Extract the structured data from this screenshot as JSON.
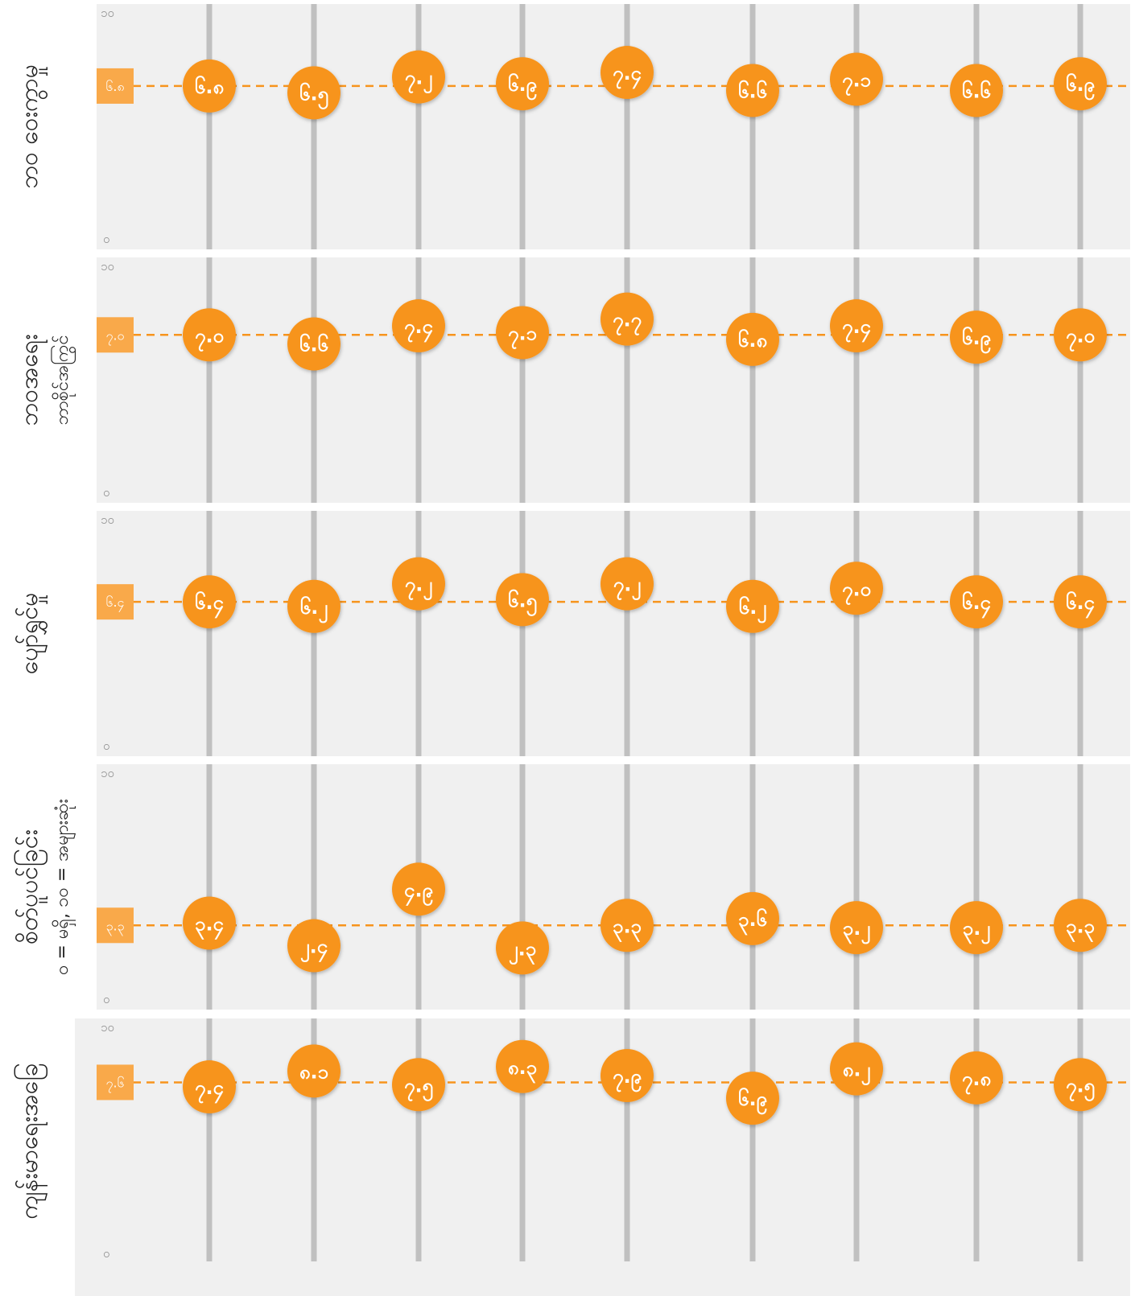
{
  "chart_data": {
    "type": "scatter",
    "ylim": [
      0,
      10
    ],
    "y_tick_labels": {
      "min": "၀",
      "max": "၁၀"
    },
    "columns": 9,
    "colors": {
      "panel_bg": "#f0f0f0",
      "gridline": "#c0c0c0",
      "point": "#f7941d",
      "average_line": "#f7941d",
      "average_badge": "#f9a94a",
      "text": "#222222",
      "tick_text": "#8a8a8a"
    },
    "rows": [
      {
        "label": "ဘဝ ဝေးကွာမှု",
        "sublabel": "",
        "average": 6.8,
        "average_label": "၆.၈",
        "values": [
          6.8,
          6.5,
          7.2,
          6.9,
          7.4,
          6.6,
          7.1,
          6.6,
          6.9
        ],
        "value_labels": [
          "၆.၈",
          "၆.၅",
          "၇.၂",
          "၆.၉",
          "၇.၄",
          "၆.၆",
          "၇.၁",
          "၆.၆",
          "၆.၉"
        ]
      },
      {
        "label": "ဘဝအရေး",
        "sublabel": "ဘာစိုင်အကြွင်",
        "average": 7.0,
        "average_label": "၇.၀",
        "values": [
          7.0,
          6.6,
          7.4,
          7.1,
          7.7,
          6.8,
          7.4,
          6.9,
          7.0
        ],
        "value_labels": [
          "၇.၀",
          "၆.၆",
          "၇.၄",
          "၇.၁",
          "၇.၇",
          "၆.၈",
          "၇.၄",
          "၆.၉",
          "၇.၀"
        ]
      },
      {
        "label": "ပျော်ရွှင်မှု",
        "sublabel": "",
        "average": 6.4,
        "average_label": "၆.၄",
        "values": [
          6.4,
          6.2,
          7.2,
          6.5,
          7.2,
          6.2,
          7.0,
          6.4,
          6.4
        ],
        "value_labels": [
          "၆.၄",
          "၆.၂",
          "၇.၂",
          "၆.၅",
          "၇.၂",
          "၆.၂",
          "၇.၀",
          "၆.၄",
          "၆.၄"
        ]
      },
      {
        "label": "စိတ်ပူပင်ခြင်း",
        "sublabel": "၀ = မရှိ, ၁၀ = အများဆုံး",
        "average": 3.3,
        "average_label": "၃.၃",
        "values": [
          3.4,
          2.4,
          4.9,
          2.3,
          3.3,
          3.6,
          3.2,
          3.2,
          3.3
        ],
        "value_labels": [
          "၃.၄",
          "၂.၄",
          "၄.၉",
          "၂.၃",
          "၃.၃",
          "၃.၆",
          "၃.၂",
          "၃.၂",
          "၃.၃"
        ]
      },
      {
        "label": "ကျန်းမာရေးအခြေ",
        "sublabel": "",
        "average": 7.6,
        "average_label": "၇.၆",
        "values": [
          7.4,
          8.1,
          7.5,
          8.3,
          7.9,
          6.9,
          8.2,
          7.8,
          7.5
        ],
        "value_labels": [
          "၇.၄",
          "၈.၁",
          "၇.၅",
          "၈.၃",
          "၇.၉",
          "၆.၉",
          "၈.၂",
          "၇.၈",
          "၇.၅"
        ]
      }
    ]
  }
}
